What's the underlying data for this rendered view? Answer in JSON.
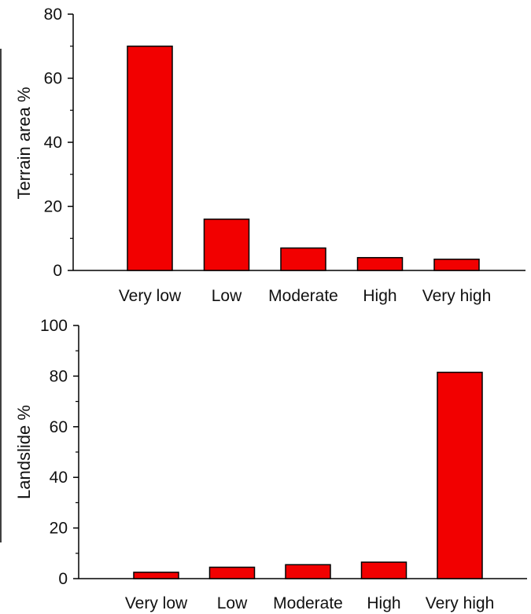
{
  "colors": {
    "bar_fill": "#f20000",
    "bar_stroke": "#000000",
    "axis": "#000000"
  },
  "chart_data": [
    {
      "type": "bar",
      "categories": [
        "Very low",
        "Low",
        "Moderate",
        "High",
        "Very high"
      ],
      "values": [
        70,
        16,
        7,
        4,
        3.5
      ],
      "ylabel": "Terrain area %",
      "xlabel": "",
      "ylim": [
        0,
        80
      ],
      "yticks": [
        0,
        20,
        40,
        60,
        80
      ],
      "ytick_labels": [
        "0",
        "20",
        "40",
        "60",
        "80"
      ],
      "grid": false,
      "legend": "none"
    },
    {
      "type": "bar",
      "categories": [
        "Very low",
        "Low",
        "Moderate",
        "High",
        "Very high"
      ],
      "values": [
        2.5,
        4.5,
        5.5,
        6.5,
        81.5
      ],
      "ylabel": "Landslide %",
      "xlabel": "",
      "ylim": [
        0,
        100
      ],
      "yticks": [
        0,
        20,
        40,
        60,
        80,
        100
      ],
      "ytick_labels": [
        "0",
        "20",
        "40",
        "60",
        "80",
        "100"
      ],
      "grid": false,
      "legend": "none"
    }
  ]
}
